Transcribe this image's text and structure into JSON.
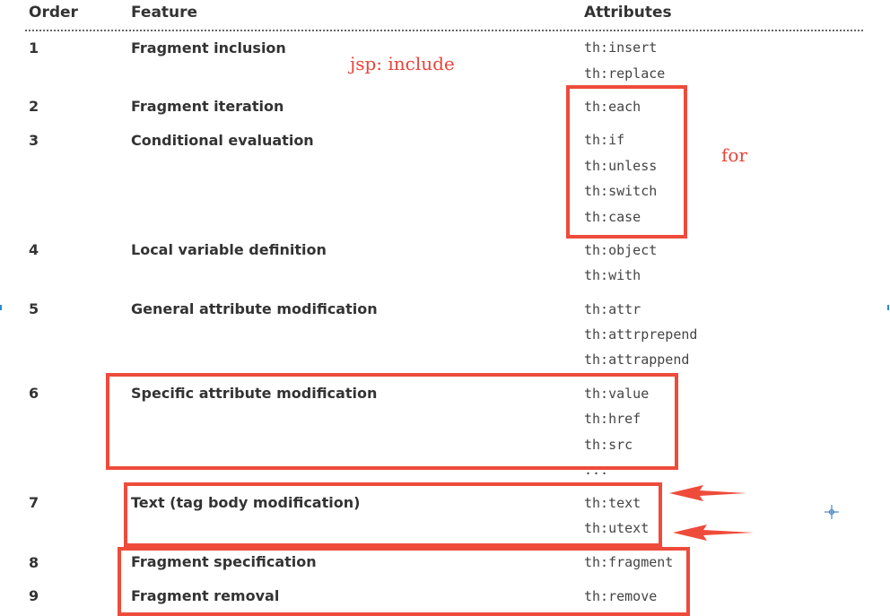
{
  "table": {
    "headers": {
      "order": "Order",
      "feature": "Feature",
      "attributes": "Attributes"
    },
    "rows": [
      {
        "order": "1",
        "feature": "Fragment inclusion",
        "attributes": [
          "th:insert",
          "th:replace"
        ]
      },
      {
        "order": "2",
        "feature": "Fragment iteration",
        "attributes": [
          "th:each"
        ]
      },
      {
        "order": "3",
        "feature": "Conditional evaluation",
        "attributes": [
          "th:if",
          "th:unless",
          "th:switch",
          "th:case"
        ]
      },
      {
        "order": "4",
        "feature": "Local variable definition",
        "attributes": [
          "th:object",
          "th:with"
        ]
      },
      {
        "order": "5",
        "feature": "General attribute modification",
        "attributes": [
          "th:attr",
          "th:attrprepend",
          "th:attrappend"
        ]
      },
      {
        "order": "6",
        "feature": "Specific attribute modification",
        "attributes": [
          "th:value",
          "th:href",
          "th:src",
          "..."
        ]
      },
      {
        "order": "7",
        "feature": "Text (tag body modification)",
        "attributes": [
          "th:text",
          "th:utext"
        ]
      },
      {
        "order": "8",
        "feature": "Fragment specification",
        "attributes": [
          "th:fragment"
        ]
      },
      {
        "order": "9",
        "feature": "Fragment removal",
        "attributes": [
          "th:remove"
        ]
      }
    ]
  },
  "annotations": {
    "jsp_include": "jsp: include",
    "for": "for"
  },
  "colors": {
    "annotation_red": "#ee4b3b",
    "text": "#333333",
    "accent_blue": "#2a8bd0"
  }
}
